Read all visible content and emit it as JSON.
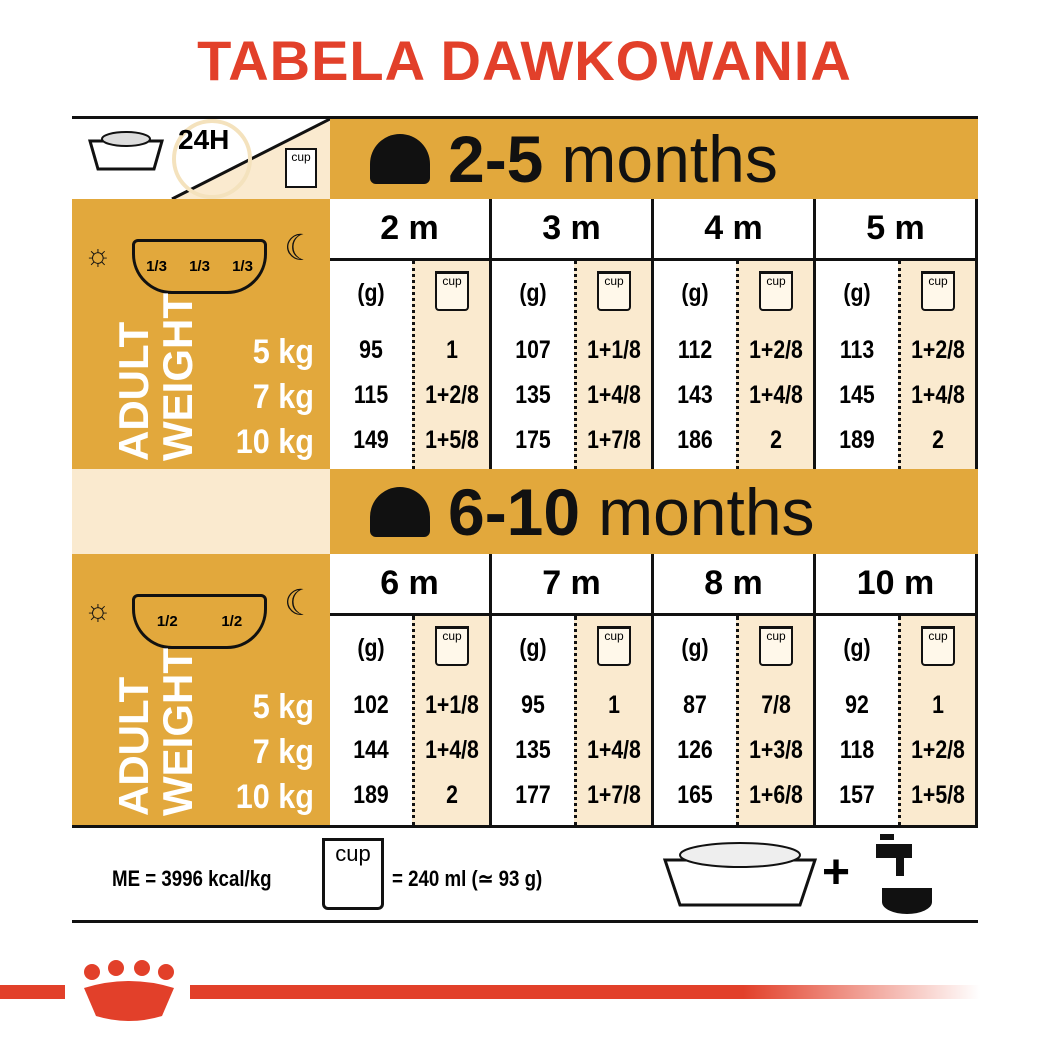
{
  "title": "TABELA DAWKOWANIA",
  "header": {
    "daily_label": "24H",
    "cup_label": "cup"
  },
  "colors": {
    "gold": "#e2a83c",
    "cream": "#faeacf",
    "red": "#e2402a"
  },
  "sections": [
    {
      "title_bold": "2-5",
      "title_rest": "months",
      "portions": [
        "1/3",
        "1/3",
        "1/3"
      ],
      "weight_axis_label": [
        "ADULT",
        "WEIGHT"
      ],
      "weights": [
        "5 kg",
        "7 kg",
        "10 kg"
      ],
      "columns": [
        {
          "month": "2 m",
          "grams": [
            "95",
            "115",
            "149"
          ],
          "cups": [
            "1",
            "1+2/8",
            "1+5/8"
          ]
        },
        {
          "month": "3 m",
          "grams": [
            "107",
            "135",
            "175"
          ],
          "cups": [
            "1+1/8",
            "1+4/8",
            "1+7/8"
          ]
        },
        {
          "month": "4 m",
          "grams": [
            "112",
            "143",
            "186"
          ],
          "cups": [
            "1+2/8",
            "1+4/8",
            "2"
          ]
        },
        {
          "month": "5 m",
          "grams": [
            "113",
            "145",
            "189"
          ],
          "cups": [
            "1+2/8",
            "1+4/8",
            "2"
          ]
        }
      ]
    },
    {
      "title_bold": "6-10",
      "title_rest": "months",
      "portions": [
        "1/2",
        "1/2"
      ],
      "weight_axis_label": [
        "ADULT",
        "WEIGHT"
      ],
      "weights": [
        "5 kg",
        "7 kg",
        "10 kg"
      ],
      "columns": [
        {
          "month": "6 m",
          "grams": [
            "102",
            "144",
            "189"
          ],
          "cups": [
            "1+1/8",
            "1+4/8",
            "2"
          ]
        },
        {
          "month": "7 m",
          "grams": [
            "95",
            "135",
            "177"
          ],
          "cups": [
            "1",
            "1+4/8",
            "1+7/8"
          ]
        },
        {
          "month": "8 m",
          "grams": [
            "87",
            "126",
            "165"
          ],
          "cups": [
            "7/8",
            "1+3/8",
            "1+6/8"
          ]
        },
        {
          "month": "10 m",
          "grams": [
            "92",
            "118",
            "157"
          ],
          "cups": [
            "1",
            "1+2/8",
            "1+5/8"
          ]
        }
      ]
    }
  ],
  "unit_grams": "(g)",
  "footer": {
    "energy": "ME = 3996 kcal/kg",
    "cup_label": "cup",
    "cup_equiv": "= 240 ml (≃ 93 g)",
    "plus": "+"
  }
}
